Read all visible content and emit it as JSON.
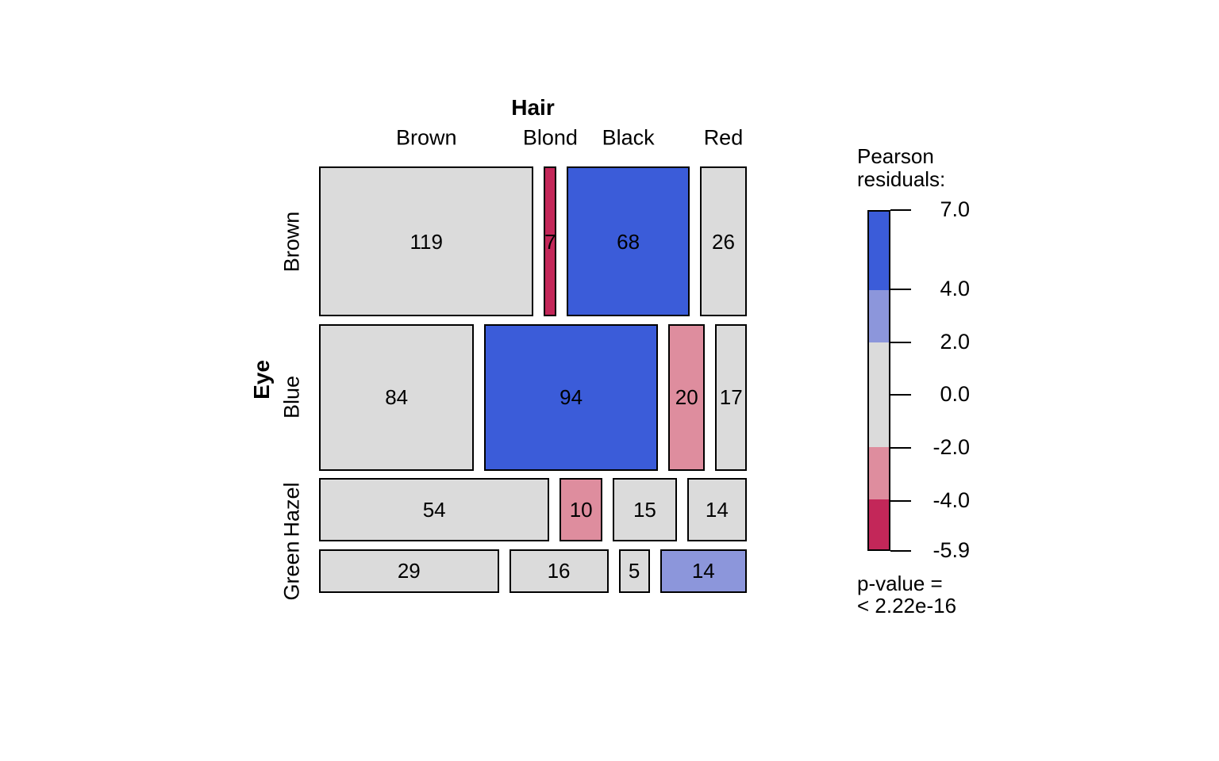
{
  "chart_data": {
    "type": "mosaic",
    "x_axis_title": "Hair",
    "y_axis_title": "Eye",
    "columns": [
      "Brown",
      "Blond",
      "Black",
      "Red"
    ],
    "rows": [
      "Brown",
      "Blue",
      "Hazel",
      "Green"
    ],
    "counts": [
      [
        119,
        7,
        68,
        26
      ],
      [
        84,
        94,
        20,
        17
      ],
      [
        54,
        10,
        15,
        14
      ],
      [
        29,
        16,
        5,
        14
      ]
    ],
    "shading": [
      [
        "neutral",
        "neg_strong",
        "pos_strong",
        "neutral"
      ],
      [
        "neutral",
        "pos_strong",
        "neg_mild",
        "neutral"
      ],
      [
        "neutral",
        "neg_mild",
        "neutral",
        "neutral"
      ],
      [
        "neutral",
        "neutral",
        "neutral",
        "pos_mild"
      ]
    ],
    "colors": {
      "pos_strong": "#3B5CD9",
      "pos_mild": "#8C96DB",
      "neutral": "#DBDBDB",
      "neg_mild": "#DE8D9E",
      "neg_strong": "#C32759"
    },
    "legend": {
      "title_lines": [
        "Pearson",
        "residuals:"
      ],
      "tick_labels": [
        "7.0",
        "4.0",
        "2.0",
        "0.0",
        "-2.0",
        "-4.0",
        "-5.9"
      ],
      "tick_values": [
        7,
        4,
        2,
        0,
        -2,
        -4,
        -5.9
      ],
      "value_max": 7,
      "value_min": -5.9,
      "segments": [
        {
          "from": 7,
          "to": 4,
          "color": "pos_strong"
        },
        {
          "from": 4,
          "to": 2,
          "color": "pos_mild"
        },
        {
          "from": 2,
          "to": -2,
          "color": "neutral"
        },
        {
          "from": -2,
          "to": -4,
          "color": "neg_mild"
        },
        {
          "from": -4,
          "to": -5.9,
          "color": "neg_strong"
        }
      ],
      "p_value_lines": [
        "p-value =",
        "< 2.22e-16"
      ]
    }
  }
}
